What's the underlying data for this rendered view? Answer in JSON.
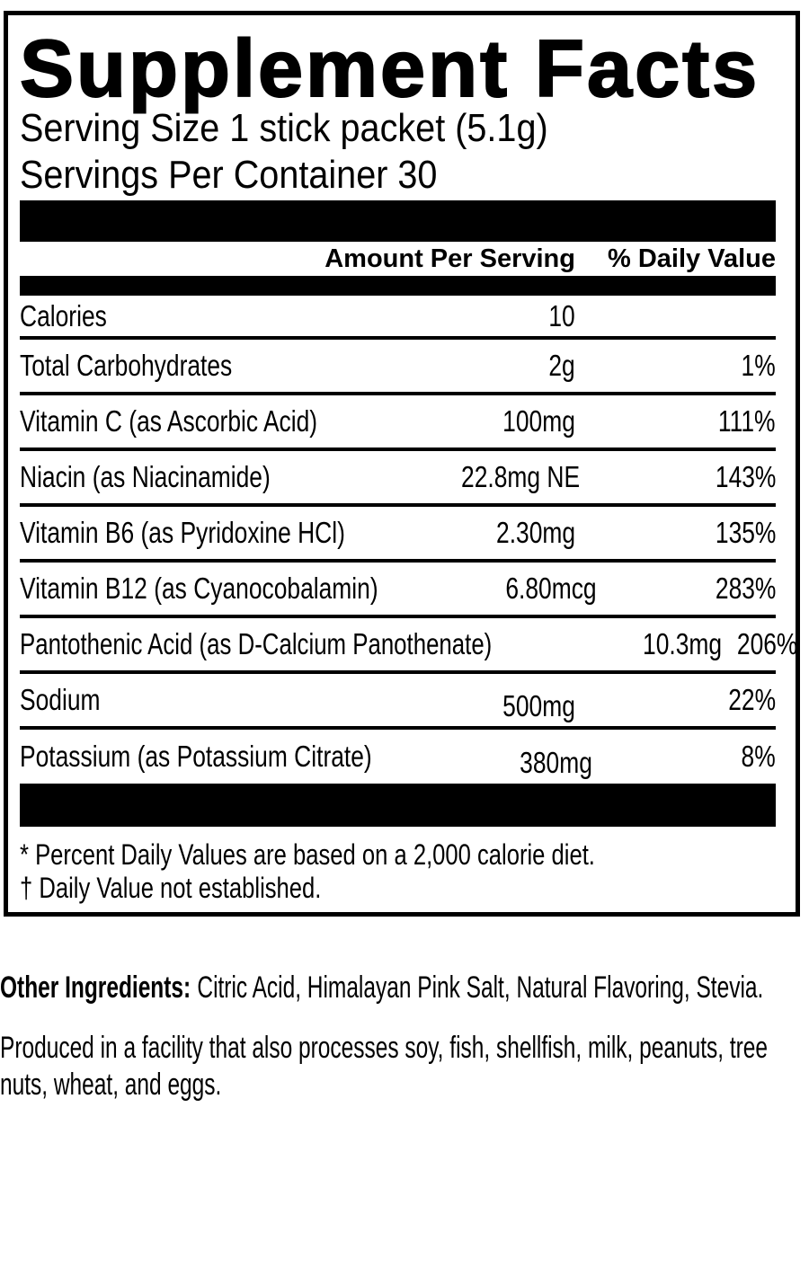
{
  "label": {
    "title": "Supplement Facts",
    "serving_size": "Serving Size 1 stick packet (5.1g)",
    "servings_per_container": "Servings Per Container 30",
    "columns": {
      "amount": "Amount Per Serving",
      "daily_value": "% Daily Value"
    },
    "rows": [
      {
        "name": "Calories",
        "amount": "10",
        "dv": ""
      },
      {
        "name": "Total Carbohydrates",
        "amount": "2g",
        "dv": "1%"
      },
      {
        "name": "Vitamin C (as Ascorbic Acid)",
        "amount": "100mg",
        "dv": "111%"
      },
      {
        "name": "Niacin (as Niacinamide)",
        "amount": "22.8mg NE",
        "dv": "143%"
      },
      {
        "name": "Vitamin B6 (as Pyridoxine HCl)",
        "amount": "2.30mg",
        "dv": "135%"
      },
      {
        "name": "Vitamin B12 (as Cyanocobalamin)",
        "amount": "6.80mcg",
        "dv": "283%"
      },
      {
        "name": "Pantothenic Acid (as D-Calcium Panothenate)",
        "amount": "10.3mg",
        "dv": "206%"
      },
      {
        "name": "Sodium",
        "amount": "500mg",
        "dv": "22%"
      },
      {
        "name": "Potassium (as Potassium Citrate)",
        "amount": "380mg",
        "dv": "8%"
      }
    ],
    "footnotes": {
      "percent_note": "* Percent Daily Values are based on a 2,000 calorie diet.",
      "dagger_note": "† Daily Value not established."
    }
  },
  "other_ingredients": {
    "label": "Other Ingredients:",
    "items": "Citric Acid, Himalayan Pink Salt, Natural Flavoring, Stevia."
  },
  "allergen_notice": {
    "line1": "Produced in a facility that also processes soy, fish, shellfish, milk, peanuts, tree",
    "line2": "nuts, wheat, and eggs."
  },
  "colors": {
    "ink": "#000000",
    "paper": "#ffffff"
  }
}
